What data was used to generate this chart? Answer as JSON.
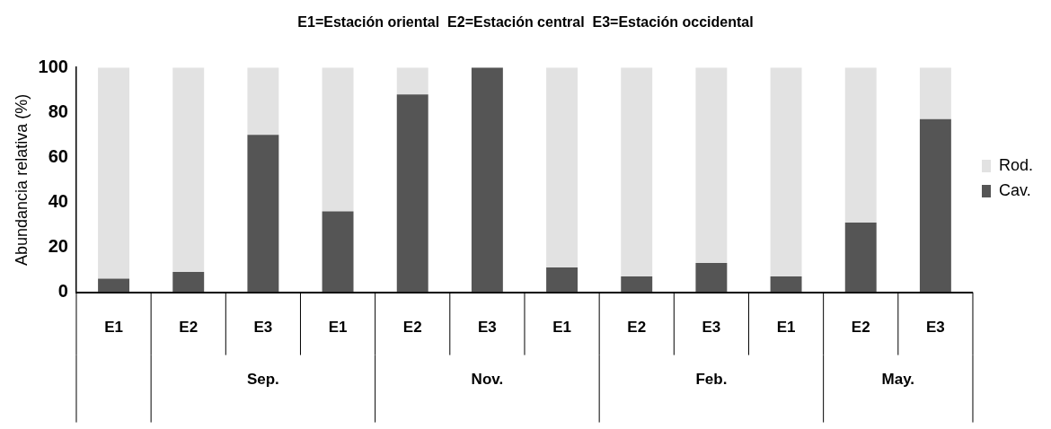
{
  "chart_data": {
    "type": "bar",
    "stacked": true,
    "title": "E1=Estación oriental  E2=Estación central  E3=Estación occidental",
    "ylabel": "Abundancia relativa (%)",
    "categories": [
      "E1",
      "E2",
      "E3",
      "E1",
      "E2",
      "E3",
      "E1",
      "E2",
      "E3",
      "E1",
      "E2",
      "E3"
    ],
    "series": [
      {
        "name": "Cav.",
        "color": "#555555",
        "values": [
          6,
          9,
          70,
          36,
          88,
          100,
          11,
          7,
          13,
          7,
          31,
          77
        ]
      },
      {
        "name": "Rod.",
        "color": "#e2e2e2",
        "values": [
          94,
          91,
          30,
          64,
          12,
          0,
          89,
          93,
          87,
          93,
          69,
          23
        ]
      }
    ],
    "ylim": [
      0,
      100
    ],
    "yticks": [
      0,
      20,
      40,
      60,
      80,
      100
    ],
    "grid": false,
    "legend": "right",
    "annotations": [
      "Sep.",
      "Nov.",
      "Feb.",
      "May."
    ]
  }
}
